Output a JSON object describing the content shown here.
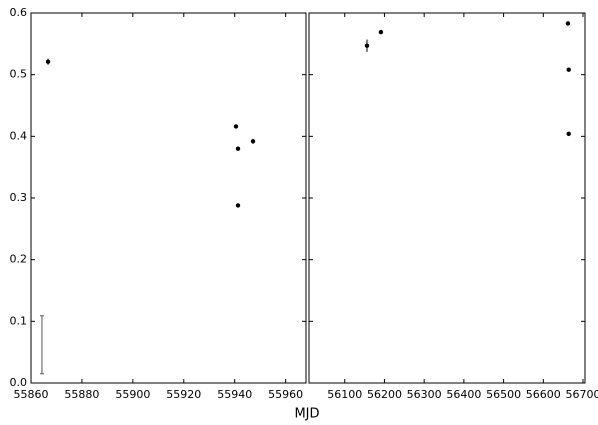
{
  "chart_data": {
    "type": "scatter",
    "xlabel": "MJD",
    "color": "#000000",
    "ylim": [
      0,
      0.6
    ],
    "yticks": [
      {
        "value": 0,
        "label": "0.0"
      },
      0.1,
      0.2,
      0.3,
      0.4,
      0.5,
      0.6
    ],
    "panels": [
      {
        "xlim": [
          55860,
          55968
        ],
        "xticks": [
          55860,
          55880,
          55900,
          55920,
          55940,
          55960
        ],
        "x": [
          55866.7,
          55940.5,
          55941.3,
          55947.2,
          55941.3
        ],
        "values": [
          0.521,
          0.416,
          0.38,
          0.392,
          0.288
        ],
        "errors": [
          0.005,
          null,
          null,
          0.004,
          null
        ],
        "error_bar": {
          "x": 55864.3,
          "low": 0.015,
          "high": 0.109
        }
      },
      {
        "xlim": [
          56010,
          56705
        ],
        "xticks": [
          56100,
          56200,
          56300,
          56400,
          56500,
          56600,
          56700
        ],
        "x": [
          56156,
          56191,
          56662,
          56664,
          56664
        ],
        "values": [
          0.547,
          0.569,
          0.583,
          0.508,
          0.404
        ],
        "errors": [
          0.01,
          null,
          null,
          null,
          null
        ]
      }
    ]
  }
}
